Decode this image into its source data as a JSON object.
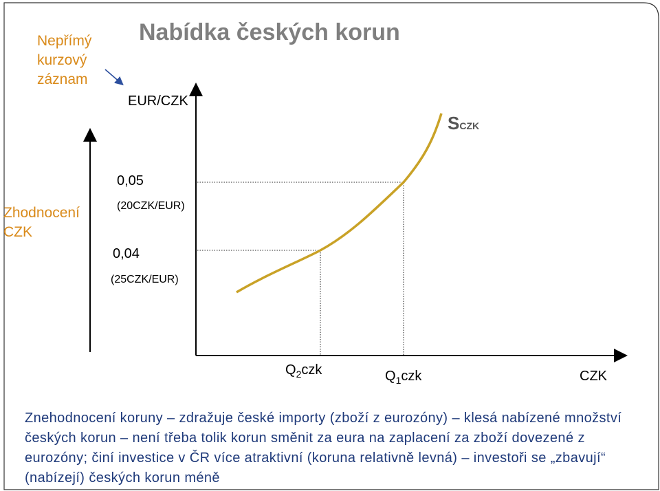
{
  "title": "Nabídka českých korun",
  "note_label": "Nepřímý kurzový záznam",
  "y_axis_label": "EUR/CZK",
  "appreciation_label": "Zhodnocení CZK",
  "price_high": "0,05",
  "price_high_note": "(20CZK/EUR)",
  "price_low": "0,04",
  "price_low_note": "(25CZK/EUR)",
  "curve_label_main": "S",
  "curve_label_sub": "CZK",
  "q2_main": "Q",
  "q2_sub": "2",
  "q2_suffix": "czk",
  "q1_main": "Q",
  "q1_sub": "1",
  "q1_suffix": "czk",
  "x_axis_label": "CZK",
  "caption": "Znehodnocení koruny – zdražuje české importy (zboží z eurozóny) – klesá nabízené množství českých korun – není třeba tolik korun směnit za eura na zaplacení za zboží dovezené z eurozóny; činí investice v ČR více atraktivní (koruna relativně levná) – investoři se „zbavují“ (nabízejí) českých korun méně",
  "colors": {
    "curve": "#c9a227",
    "accent_orange": "#d98a1a",
    "caption_blue": "#1f3a7a",
    "title_gray": "#7f7f7f"
  }
}
